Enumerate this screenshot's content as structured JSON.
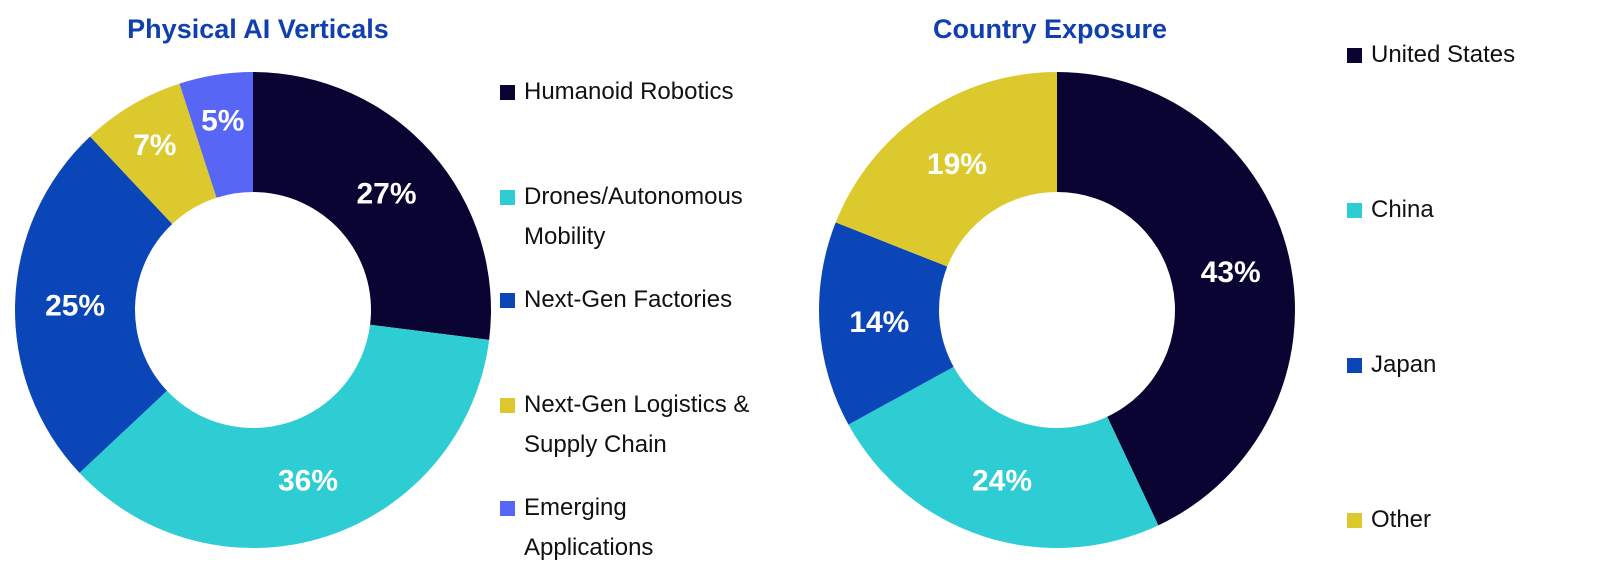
{
  "chart_data": [
    {
      "type": "pie",
      "variant": "donut",
      "title": "Physical AI Verticals",
      "categories": [
        "Humanoid Robotics",
        "Drones/Autonomous Mobility",
        "Next-Gen Factories",
        "Next-Gen Logistics & Supply Chain",
        "Emerging Applications"
      ],
      "legend_lines": [
        [
          "Humanoid Robotics"
        ],
        [
          "Drones/Autonomous",
          "Mobility"
        ],
        [
          "Next-Gen Factories"
        ],
        [
          "Next-Gen Logistics &",
          "Supply Chain"
        ],
        [
          "Emerging",
          "Applications"
        ]
      ],
      "values": [
        27,
        36,
        25,
        7,
        5
      ],
      "labels": [
        "27%",
        "36%",
        "25%",
        "7%",
        "5%"
      ],
      "colors": [
        "#0a0433",
        "#2ecdd3",
        "#0b46b8",
        "#dcc92e",
        "#5766f5"
      ],
      "legend_position": "right"
    },
    {
      "type": "pie",
      "variant": "donut",
      "title": "Country Exposure",
      "categories": [
        "United States",
        "China",
        "Japan",
        "Other"
      ],
      "legend_lines": [
        [
          "United States"
        ],
        [
          "China"
        ],
        [
          "Japan"
        ],
        [
          "Other"
        ]
      ],
      "values": [
        43,
        24,
        14,
        19
      ],
      "labels": [
        "43%",
        "24%",
        "14%",
        "19%"
      ],
      "colors": [
        "#0a0433",
        "#2ecdd3",
        "#0b46b8",
        "#dcc92e"
      ],
      "legend_position": "right"
    }
  ]
}
